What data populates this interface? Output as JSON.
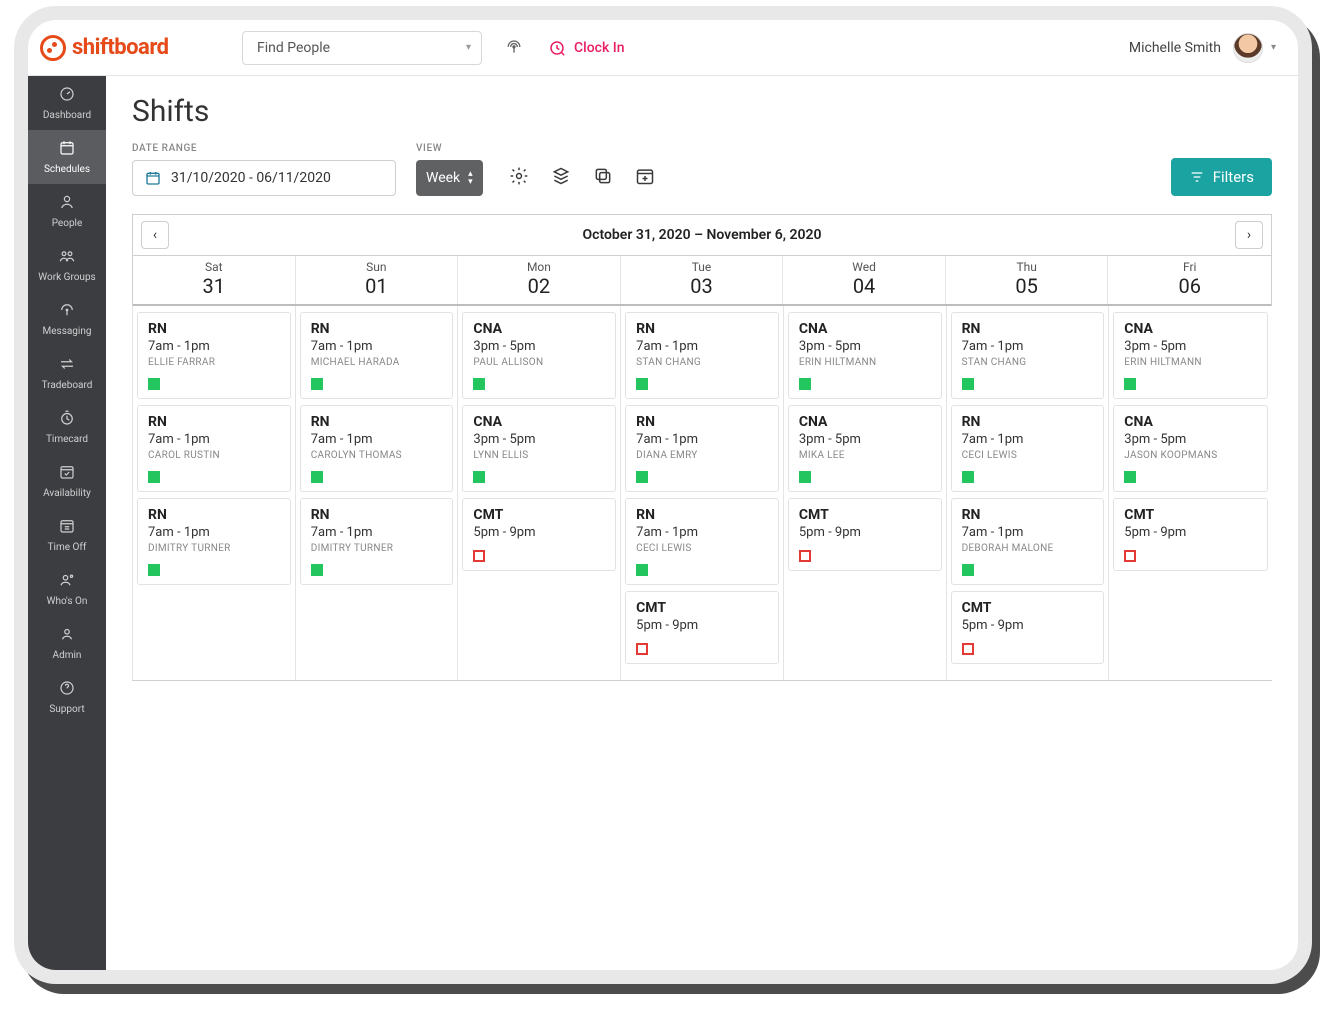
{
  "brand": {
    "name": "shiftboard"
  },
  "header": {
    "find_label": "Find People",
    "clockin_label": "Clock In",
    "user_name": "Michelle Smith"
  },
  "sidebar": {
    "items": [
      {
        "id": "dashboard",
        "label": "Dashboard"
      },
      {
        "id": "schedules",
        "label": "Schedules"
      },
      {
        "id": "people",
        "label": "People"
      },
      {
        "id": "workgroups",
        "label": "Work Groups"
      },
      {
        "id": "messaging",
        "label": "Messaging"
      },
      {
        "id": "tradeboard",
        "label": "Tradeboard"
      },
      {
        "id": "timecard",
        "label": "Timecard"
      },
      {
        "id": "availability",
        "label": "Availability"
      },
      {
        "id": "timeoff",
        "label": "Time Off"
      },
      {
        "id": "whoson",
        "label": "Who's On"
      },
      {
        "id": "admin",
        "label": "Admin"
      },
      {
        "id": "support",
        "label": "Support"
      }
    ],
    "active_index": 1
  },
  "page": {
    "title": "Shifts",
    "date_range_label": "DATE RANGE",
    "date_range_value": "31/10/2020 - 06/11/2020",
    "view_label": "VIEW",
    "view_value": "Week",
    "filters_label": "Filters",
    "range_display": "October 31, 2020 – November 6, 2020"
  },
  "colors": {
    "brand_accent": "#e64a19",
    "clockin": "#e91e63",
    "filters_bg": "#1aa3a0",
    "sidebar_bg": "#3b3d40",
    "sidebar_active_bg": "#5a5c5f",
    "status_filled": "#22c55e",
    "status_open": "#e53935",
    "border": "#cfcfcf"
  },
  "calendar": {
    "days": [
      {
        "dow": "Sat",
        "num": "31"
      },
      {
        "dow": "Sun",
        "num": "01"
      },
      {
        "dow": "Mon",
        "num": "02"
      },
      {
        "dow": "Tue",
        "num": "03"
      },
      {
        "dow": "Wed",
        "num": "04"
      },
      {
        "dow": "Thu",
        "num": "05"
      },
      {
        "dow": "Fri",
        "num": "06"
      }
    ],
    "columns": [
      [
        {
          "role": "RN",
          "time": "7am - 1pm",
          "person": "ELLIE FARRAR",
          "status": "filled"
        },
        {
          "role": "RN",
          "time": "7am - 1pm",
          "person": "CAROL RUSTIN",
          "status": "filled"
        },
        {
          "role": "RN",
          "time": "7am - 1pm",
          "person": "DIMITRY TURNER",
          "status": "filled"
        }
      ],
      [
        {
          "role": "RN",
          "time": "7am - 1pm",
          "person": "MICHAEL HARADA",
          "status": "filled"
        },
        {
          "role": "RN",
          "time": "7am - 1pm",
          "person": "CAROLYN THOMAS",
          "status": "filled"
        },
        {
          "role": "RN",
          "time": "7am - 1pm",
          "person": "DIMITRY TURNER",
          "status": "filled"
        }
      ],
      [
        {
          "role": "CNA",
          "time": "3pm - 5pm",
          "person": "PAUL ALLISON",
          "status": "filled"
        },
        {
          "role": "CNA",
          "time": "3pm - 5pm",
          "person": "LYNN ELLIS",
          "status": "filled"
        },
        {
          "role": "CMT",
          "time": "5pm - 9pm",
          "person": "",
          "status": "open"
        }
      ],
      [
        {
          "role": "RN",
          "time": "7am - 1pm",
          "person": "STAN CHANG",
          "status": "filled"
        },
        {
          "role": "RN",
          "time": "7am - 1pm",
          "person": "DIANA EMRY",
          "status": "filled"
        },
        {
          "role": "RN",
          "time": "7am - 1pm",
          "person": "CECI LEWIS",
          "status": "filled"
        },
        {
          "role": "CMT",
          "time": "5pm - 9pm",
          "person": "",
          "status": "open"
        }
      ],
      [
        {
          "role": "CNA",
          "time": "3pm - 5pm",
          "person": "ERIN HILTMANN",
          "status": "filled"
        },
        {
          "role": "CNA",
          "time": "3pm - 5pm",
          "person": "MIKA LEE",
          "status": "filled"
        },
        {
          "role": "CMT",
          "time": "5pm - 9pm",
          "person": "",
          "status": "open"
        }
      ],
      [
        {
          "role": "RN",
          "time": "7am - 1pm",
          "person": "STAN CHANG",
          "status": "filled"
        },
        {
          "role": "RN",
          "time": "7am - 1pm",
          "person": "CECI LEWIS",
          "status": "filled"
        },
        {
          "role": "RN",
          "time": "7am - 1pm",
          "person": "DEBORAH MALONE",
          "status": "filled"
        },
        {
          "role": "CMT",
          "time": "5pm - 9pm",
          "person": "",
          "status": "open"
        }
      ],
      [
        {
          "role": "CNA",
          "time": "3pm - 5pm",
          "person": "ERIN HILTMANN",
          "status": "filled"
        },
        {
          "role": "CNA",
          "time": "3pm - 5pm",
          "person": "JASON KOOPMANS",
          "status": "filled"
        },
        {
          "role": "CMT",
          "time": "5pm - 9pm",
          "person": "",
          "status": "open"
        }
      ]
    ]
  }
}
